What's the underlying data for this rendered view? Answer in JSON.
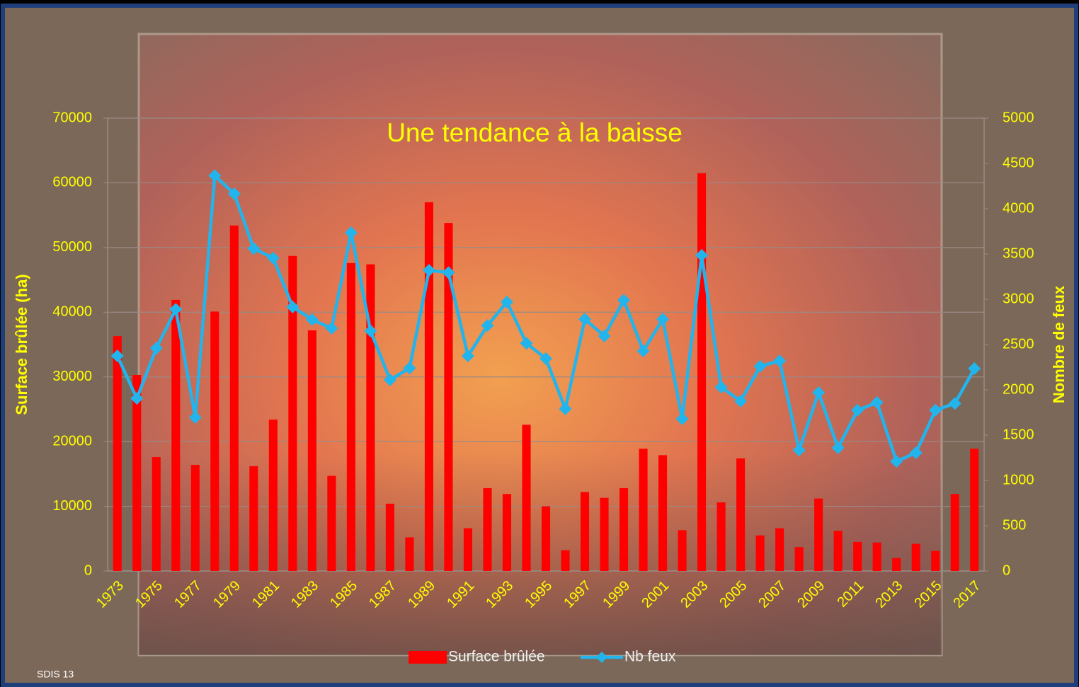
{
  "chart_data": {
    "type": "bar_line",
    "title": "Une tendance à la baisse",
    "y_label": "Surface brûlée (ha)",
    "y2_label": "Nombre de feux",
    "footnote": "SDIS 13",
    "categories": [
      "1973",
      null,
      "1975",
      null,
      "1977",
      null,
      "1979",
      null,
      "1981",
      null,
      "1983",
      null,
      "1985",
      null,
      "1987",
      null,
      "1989",
      null,
      "1991",
      null,
      "1993",
      null,
      "1995",
      null,
      "1997",
      null,
      "1999",
      null,
      "2001",
      null,
      "2003",
      null,
      "2005",
      null,
      "2007",
      null,
      "2009",
      null,
      "2011",
      null,
      "2013",
      null,
      "2015",
      null,
      "2017"
    ],
    "series": [
      {
        "name": "Surface brûlée",
        "type": "bar",
        "color": "#ff0000",
        "values": [
          36300,
          30300,
          17600,
          41900,
          16400,
          40100,
          53400,
          16200,
          23400,
          48700,
          37200,
          14700,
          47600,
          47400,
          10400,
          5200,
          57000,
          53800,
          6600,
          12800,
          11900,
          22600,
          10000,
          3200,
          12200,
          11300,
          12800,
          18900,
          17900,
          6300,
          61500,
          10600,
          17400,
          5500,
          6600,
          3700,
          11200,
          6200,
          4500,
          4400,
          2000,
          4200,
          3100,
          11900,
          18900
        ]
      },
      {
        "name": "Nb feux",
        "type": "line",
        "axis": "y2",
        "color": "#22b4ec",
        "values": [
          2375,
          1905,
          2460,
          2890,
          1695,
          4365,
          4165,
          3560,
          3455,
          2915,
          2775,
          2680,
          3735,
          2650,
          2110,
          2240,
          3320,
          3295,
          2375,
          2710,
          2970,
          2515,
          2345,
          1790,
          2780,
          2595,
          2990,
          2430,
          2780,
          1680,
          3485,
          2030,
          1875,
          2260,
          2320,
          1335,
          1970,
          1360,
          1775,
          1860,
          1210,
          1305,
          1775,
          1850,
          2235
        ]
      }
    ],
    "ylim": [
      0,
      70000
    ],
    "yticks": [
      0,
      10000,
      20000,
      30000,
      40000,
      50000,
      60000,
      70000
    ],
    "y2lim": [
      0,
      5000
    ],
    "y2ticks": [
      0,
      500,
      1000,
      1500,
      2000,
      2500,
      3000,
      3500,
      4000,
      4500,
      5000
    ],
    "grid": true,
    "legend": "bottom"
  }
}
